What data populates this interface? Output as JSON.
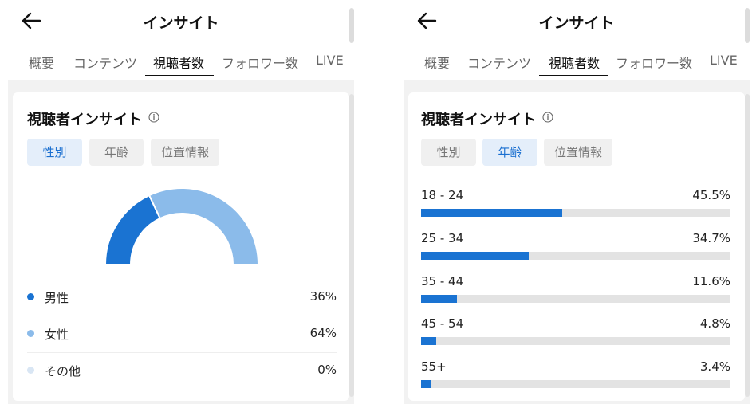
{
  "panels": [
    {
      "header": {
        "title": "インサイト",
        "back_icon": "arrow-left-icon"
      },
      "tabs": [
        {
          "label": "概要",
          "active": false
        },
        {
          "label": "コンテンツ",
          "active": false
        },
        {
          "label": "視聴者数",
          "active": true
        },
        {
          "label": "フォロワー数",
          "active": false
        },
        {
          "label": "LIVE",
          "active": false
        }
      ],
      "card": {
        "title": "視聴者インサイト",
        "info_icon": "info-circle-icon",
        "filters": [
          {
            "label": "性別",
            "active": true
          },
          {
            "label": "年齢",
            "active": false
          },
          {
            "label": "位置情報",
            "active": false
          }
        ],
        "legend": [
          {
            "label": "男性",
            "value": "36%",
            "color": "#1a73d2"
          },
          {
            "label": "女性",
            "value": "64%",
            "color": "#8bbbea"
          },
          {
            "label": "その他",
            "value": "0%",
            "color": "#d9e6f4"
          }
        ]
      }
    },
    {
      "header": {
        "title": "インサイト",
        "back_icon": "arrow-left-icon"
      },
      "tabs": [
        {
          "label": "概要",
          "active": false
        },
        {
          "label": "コンテンツ",
          "active": false
        },
        {
          "label": "視聴者数",
          "active": true
        },
        {
          "label": "フォロワー数",
          "active": false
        },
        {
          "label": "LIVE",
          "active": false
        }
      ],
      "card": {
        "title": "視聴者インサイト",
        "info_icon": "info-circle-icon",
        "filters": [
          {
            "label": "性別",
            "active": false
          },
          {
            "label": "年齢",
            "active": true
          },
          {
            "label": "位置情報",
            "active": false
          }
        ],
        "age_groups": [
          {
            "label": "18 - 24",
            "value": "45.5%",
            "fraction": 0.455
          },
          {
            "label": "25 - 34",
            "value": "34.7%",
            "fraction": 0.347
          },
          {
            "label": "35 - 44",
            "value": "11.6%",
            "fraction": 0.116
          },
          {
            "label": "45 - 54",
            "value": "4.8%",
            "fraction": 0.048
          },
          {
            "label": "55+",
            "value": "3.4%",
            "fraction": 0.034
          }
        ]
      }
    }
  ],
  "chart_data": [
    {
      "type": "pie",
      "categories": [
        "男性",
        "女性",
        "その他"
      ],
      "values": [
        36,
        64,
        0
      ],
      "colors": [
        "#1a73d2",
        "#8bbbea",
        "#d9e6f4"
      ]
    },
    {
      "type": "bar",
      "categories": [
        "18 - 24",
        "25 - 34",
        "35 - 44",
        "45 - 54",
        "55+"
      ],
      "values": [
        45.5,
        34.7,
        11.6,
        4.8,
        3.4
      ],
      "ylim": [
        0,
        100
      ]
    }
  ]
}
